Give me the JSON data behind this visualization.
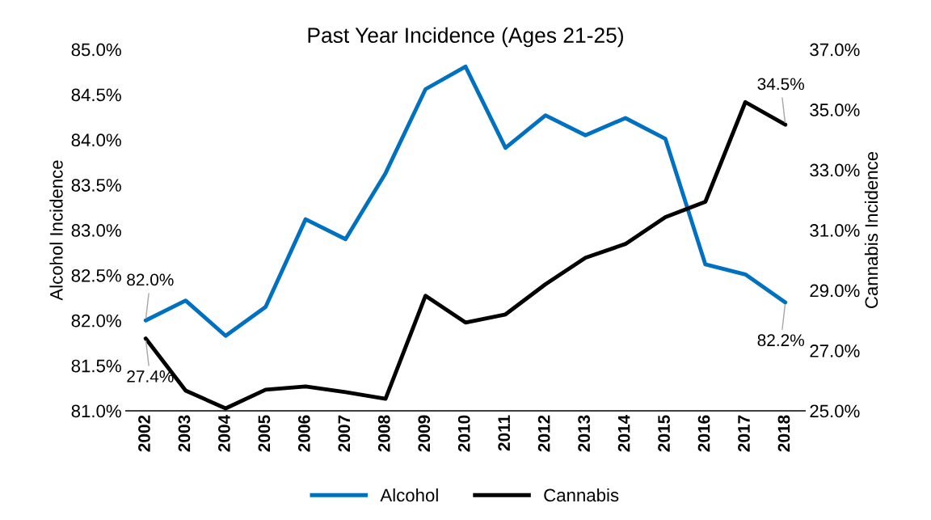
{
  "chart_data": {
    "type": "line",
    "title": "Past Year Incidence (Ages 21-25)",
    "ylabel": "Alcohol Incidence",
    "y2label": "Cannabis Incidence",
    "categories": [
      "2002",
      "2003",
      "2004",
      "2005",
      "2006",
      "2007",
      "2008",
      "2009",
      "2010",
      "2011",
      "2012",
      "2013",
      "2014",
      "2015",
      "2016",
      "2017",
      "2018"
    ],
    "series": [
      {
        "name": "Alcohol",
        "color": "#0070c0",
        "values": [
          82.0,
          82.22,
          81.83,
          82.15,
          83.12,
          82.9,
          83.63,
          84.56,
          84.81,
          83.91,
          84.27,
          84.05,
          84.24,
          84.01,
          82.62,
          82.51,
          82.2
        ],
        "value_labels": [
          "82.0%",
          null,
          null,
          null,
          null,
          null,
          null,
          null,
          null,
          null,
          null,
          null,
          null,
          null,
          null,
          null,
          "82.2%"
        ]
      },
      {
        "name": "Cannabis",
        "color": "#000000",
        "axis": "y2",
        "values": [
          27.4,
          25.67,
          25.08,
          25.7,
          25.81,
          25.62,
          25.4,
          28.82,
          27.93,
          28.2,
          29.2,
          30.08,
          30.54,
          31.43,
          31.94,
          35.25,
          34.5
        ],
        "value_labels": [
          "27.4%",
          null,
          null,
          null,
          null,
          null,
          null,
          null,
          null,
          null,
          null,
          null,
          null,
          null,
          null,
          null,
          "34.5%"
        ]
      }
    ],
    "ylim": [
      81.0,
      85.0
    ],
    "yticks": [
      {
        "value": 81.0,
        "label": "81.0%"
      },
      {
        "value": 81.5,
        "label": "81.5%"
      },
      {
        "value": 82.0,
        "label": "82.0%"
      },
      {
        "value": 82.5,
        "label": "82.5%"
      },
      {
        "value": 83.0,
        "label": "83.0%"
      },
      {
        "value": 83.5,
        "label": "83.5%"
      },
      {
        "value": 84.0,
        "label": "84.0%"
      },
      {
        "value": 84.5,
        "label": "84.5%"
      },
      {
        "value": 85.0,
        "label": "85.0%"
      }
    ],
    "y2lim": [
      25.0,
      37.0
    ],
    "y2ticks": [
      {
        "value": 25.0,
        "label": "25.0%"
      },
      {
        "value": 27.0,
        "label": "27.0%"
      },
      {
        "value": 29.0,
        "label": "29.0%"
      },
      {
        "value": 31.0,
        "label": "31.0%"
      },
      {
        "value": 33.0,
        "label": "33.0%"
      },
      {
        "value": 35.0,
        "label": "35.0%"
      },
      {
        "value": 37.0,
        "label": "37.0%"
      }
    ],
    "legend": "bottom",
    "grid": false
  }
}
